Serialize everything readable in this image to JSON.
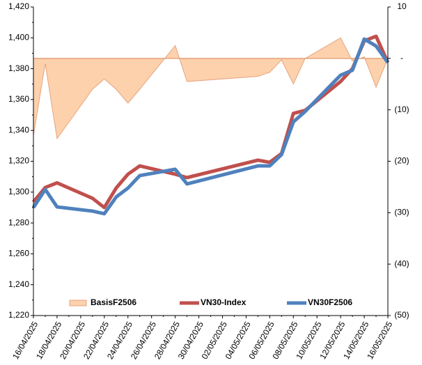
{
  "chart_data": {
    "type": "line",
    "x": [
      "16/04/2025",
      "17/04/2025",
      "18/04/2025",
      "21/04/2025",
      "22/04/2025",
      "23/04/2025",
      "24/04/2025",
      "25/04/2025",
      "28/04/2025",
      "29/04/2025",
      "05/05/2025",
      "06/05/2025",
      "07/05/2025",
      "08/05/2025",
      "09/05/2025",
      "12/05/2025",
      "13/05/2025",
      "14/05/2025",
      "15/05/2025",
      "16/05/2025"
    ],
    "series": [
      {
        "name": "BasisF2506",
        "type": "area",
        "axis": "y2",
        "color": "#fcd1ac",
        "values": [
          -15,
          -1,
          -15.6,
          -6,
          -4,
          -6,
          -8.7,
          -6,
          2.5,
          -4.5,
          -3.5,
          -2.7,
          -0.3,
          -5,
          0,
          4,
          -0.5,
          0.3,
          -5.6,
          0
        ]
      },
      {
        "name": "VN30-Index",
        "type": "line",
        "color": "#c0504d",
        "values": [
          1293.6,
          1303,
          1306,
          1296,
          1290,
          1302.6,
          1311.6,
          1317,
          1311.6,
          1309.4,
          1320.7,
          1319.3,
          1325,
          1351,
          1353,
          1371.7,
          1380,
          1398,
          1401,
          1384
        ]
      },
      {
        "name": "VN30F2506",
        "type": "line",
        "color": "#4f81bd",
        "values": [
          1290,
          1301.7,
          1290.4,
          1287.7,
          1286,
          1296.8,
          1302.6,
          1310.7,
          1314.8,
          1305.3,
          1317,
          1317,
          1324.3,
          1345.5,
          1352.3,
          1375.8,
          1379,
          1399.2,
          1394.7,
          1384
        ]
      }
    ],
    "xlim": [
      "16/04/2025",
      "16/05/2025"
    ],
    "xticks": [
      "16/04/2025",
      "18/04/2025",
      "20/04/2025",
      "22/04/2025",
      "24/04/2025",
      "26/04/2025",
      "28/04/2025",
      "30/04/2025",
      "02/05/2025",
      "04/05/2025",
      "06/05/2025",
      "08/05/2025",
      "10/05/2025",
      "12/05/2025",
      "14/05/2025",
      "16/05/2025"
    ],
    "ylim": [
      1220,
      1420
    ],
    "yticks": [
      {
        "value": 1220,
        "label": "1,220"
      },
      {
        "value": 1240,
        "label": "1,240"
      },
      {
        "value": 1260,
        "label": "1,260"
      },
      {
        "value": 1280,
        "label": "1,280"
      },
      {
        "value": 1300,
        "label": "1,300"
      },
      {
        "value": 1320,
        "label": "1,320"
      },
      {
        "value": 1340,
        "label": "1,340"
      },
      {
        "value": 1360,
        "label": "1,360"
      },
      {
        "value": 1380,
        "label": "1,380"
      },
      {
        "value": 1400,
        "label": "1,400"
      },
      {
        "value": 1420,
        "label": "1,420"
      }
    ],
    "y2lim": [
      -50,
      10
    ],
    "y2ticks": [
      10,
      {
        "value": 0,
        "label": "-"
      },
      {
        "value": -10,
        "label": "(10)"
      },
      {
        "value": -20,
        "label": "(20)"
      },
      {
        "value": -30,
        "label": "(30)"
      },
      {
        "value": -40,
        "label": "(40)"
      },
      {
        "value": -50,
        "label": "(50)"
      }
    ],
    "legend": "bottom"
  }
}
